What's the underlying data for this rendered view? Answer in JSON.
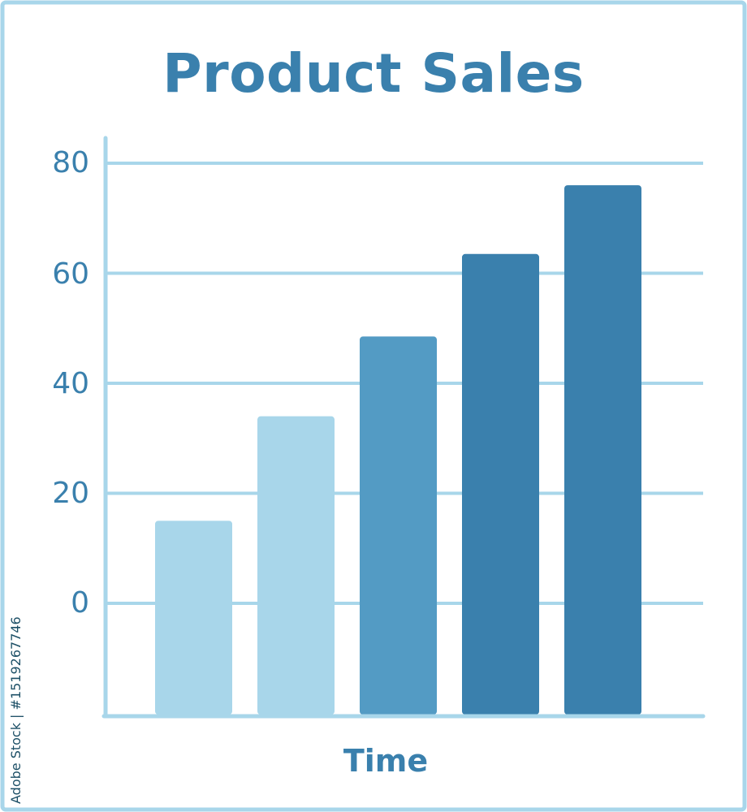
{
  "chart_data": {
    "type": "bar",
    "title": "Product Sales",
    "xlabel": "Time",
    "ylabel": "",
    "categories": [
      "",
      "",
      "",
      "",
      ""
    ],
    "values": [
      15,
      34,
      48.5,
      63.5,
      76
    ],
    "ylim": [
      -20,
      85
    ],
    "yticks": [
      "80",
      "60",
      "40",
      "20",
      "0"
    ],
    "grid": true,
    "legend": "none"
  },
  "colors": {
    "title": "#3a80ad",
    "axis": "#a8d6ea",
    "frame": "#a8d6ea",
    "bars": [
      "#a8d6ea",
      "#a8d6ea",
      "#539bc4",
      "#3a80ad",
      "#3a80ad"
    ]
  },
  "watermark": {
    "id_text": "Adobe Stock | #1519267746"
  }
}
